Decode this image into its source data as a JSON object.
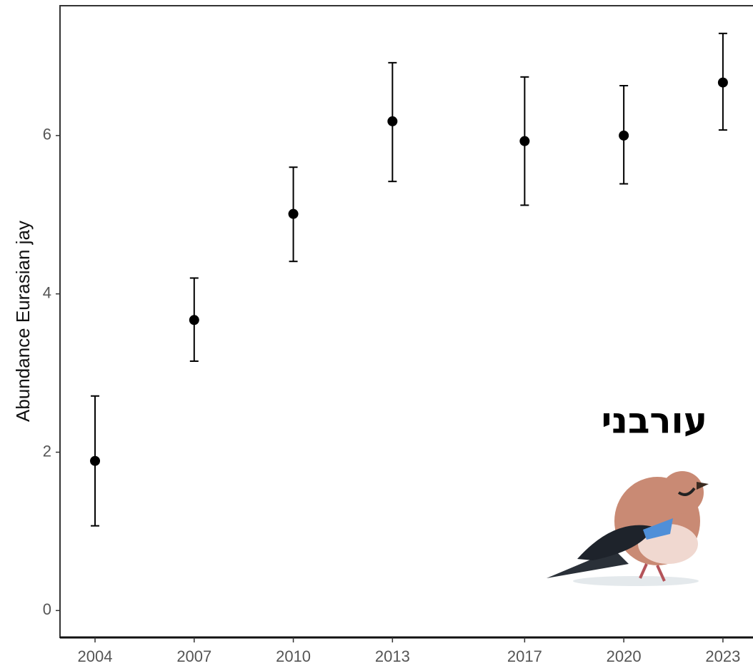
{
  "chart_data": {
    "type": "errorbar",
    "y_label": "Abundance Eurasian jay",
    "annotation": "עורבני",
    "x": [
      2004,
      2007,
      2010,
      2013,
      2017,
      2020,
      2023
    ],
    "values": [
      1.89,
      3.67,
      5.01,
      6.18,
      5.93,
      6.0,
      6.67
    ],
    "lower": [
      1.07,
      3.15,
      4.41,
      5.42,
      5.12,
      5.39,
      6.07
    ],
    "upper": [
      2.71,
      4.2,
      5.6,
      6.92,
      6.74,
      6.63,
      7.29
    ],
    "color": "#000000",
    "xlim": [
      2002.94,
      2023.91
    ],
    "xticks": [
      2004,
      2007,
      2010,
      2013,
      2017,
      2020,
      2023
    ],
    "ylim": [
      -0.34,
      7.64
    ],
    "yticks": [
      0,
      2,
      4,
      6
    ]
  }
}
